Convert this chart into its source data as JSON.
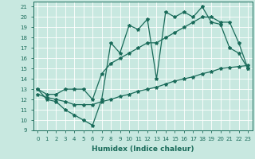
{
  "bg_color": "#c8e8e0",
  "grid_color": "#b0d8d0",
  "line_color": "#1a6b5a",
  "line1_y": [
    13,
    12,
    11.8,
    11,
    10.5,
    10,
    9.5,
    12,
    17.5,
    16.5,
    19.2,
    18.8,
    19.8,
    14,
    20.5,
    20,
    20.5,
    20,
    21,
    19.5,
    19.3,
    17,
    16.5,
    15
  ],
  "line2_y": [
    13,
    12.5,
    12.5,
    13,
    13,
    13,
    12,
    14.5,
    15.5,
    16,
    16.5,
    17,
    17.5,
    17.5,
    18,
    18.5,
    19,
    19.5,
    20,
    20,
    19.5,
    19.5,
    17.5,
    15
  ],
  "line3_y": [
    12.5,
    12.2,
    12.0,
    11.8,
    11.5,
    11.5,
    11.5,
    11.8,
    12.0,
    12.3,
    12.5,
    12.8,
    13.0,
    13.2,
    13.5,
    13.8,
    14.0,
    14.2,
    14.5,
    14.7,
    15.0,
    15.1,
    15.2,
    15.3
  ],
  "xlabel": "Humidex (Indice chaleur)",
  "xlim": [
    -0.5,
    23.5
  ],
  "ylim": [
    9,
    21.5
  ],
  "xticks": [
    0,
    1,
    2,
    3,
    4,
    5,
    6,
    7,
    8,
    9,
    10,
    11,
    12,
    13,
    14,
    15,
    16,
    17,
    18,
    19,
    20,
    21,
    22,
    23
  ],
  "yticks": [
    9,
    10,
    11,
    12,
    13,
    14,
    15,
    16,
    17,
    18,
    19,
    20,
    21
  ],
  "marker": "*",
  "markersize": 3,
  "linewidth": 0.9,
  "xlabel_fontsize": 6.5,
  "tick_fontsize": 5
}
